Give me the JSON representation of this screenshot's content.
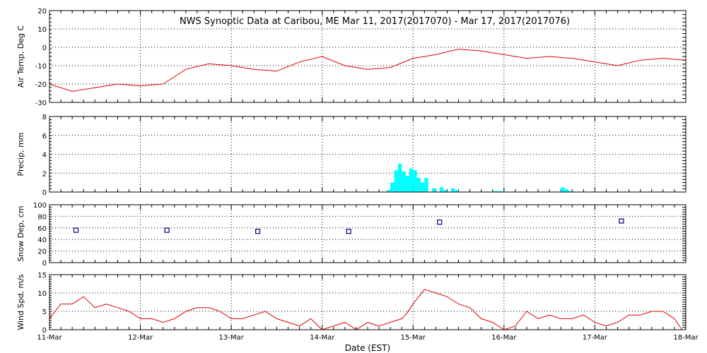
{
  "title": "NWS Synoptic Data at Caribou, ME   Mar 11, 2017(2017070) - Mar 17, 2017(2017076)",
  "xlabel": "Date (EST)",
  "x_ticks": [
    "11-Mar",
    "12-Mar",
    "13-Mar",
    "14-Mar",
    "15-Mar",
    "16-Mar",
    "17-Mar",
    "18-Mar"
  ],
  "colors": {
    "temp": "#dd0000",
    "precip": "#00ffff",
    "snow": "#000080",
    "wind": "#dd0000",
    "grid": "#000000"
  },
  "chart_data": [
    {
      "type": "line",
      "ylabel": "Air Temp, Deg C",
      "ylim": [
        -30,
        20
      ],
      "yticks": [
        20,
        10,
        0,
        -10,
        -20,
        -30
      ],
      "x": [
        "2017-03-11 00:00",
        "2017-03-11 06:00",
        "2017-03-11 12:00",
        "2017-03-11 18:00",
        "2017-03-12 00:00",
        "2017-03-12 06:00",
        "2017-03-12 12:00",
        "2017-03-12 18:00",
        "2017-03-13 00:00",
        "2017-03-13 06:00",
        "2017-03-13 12:00",
        "2017-03-13 18:00",
        "2017-03-14 00:00",
        "2017-03-14 06:00",
        "2017-03-14 12:00",
        "2017-03-14 18:00",
        "2017-03-15 00:00",
        "2017-03-15 06:00",
        "2017-03-15 12:00",
        "2017-03-15 18:00",
        "2017-03-16 00:00",
        "2017-03-16 06:00",
        "2017-03-16 12:00",
        "2017-03-16 18:00",
        "2017-03-17 00:00",
        "2017-03-17 06:00",
        "2017-03-17 12:00",
        "2017-03-17 18:00",
        "2017-03-17 23:59"
      ],
      "values": [
        -20,
        -24,
        -22,
        -20,
        -21,
        -20,
        -12,
        -9,
        -10,
        -12,
        -13,
        -8,
        -5,
        -10,
        -12,
        -11,
        -6,
        -4,
        -1,
        -2,
        -4,
        -6,
        -5,
        -6,
        -8,
        -10,
        -7,
        -6,
        -7
      ],
      "grid": true
    },
    {
      "type": "bar",
      "ylabel": "Precip, mm",
      "ylim": [
        0,
        8
      ],
      "yticks": [
        8,
        6,
        4,
        2,
        0
      ],
      "x": [
        "2017-03-14 17:00",
        "2017-03-14 18:00",
        "2017-03-14 19:00",
        "2017-03-14 20:00",
        "2017-03-14 21:00",
        "2017-03-14 22:00",
        "2017-03-14 23:00",
        "2017-03-15 00:00",
        "2017-03-15 01:00",
        "2017-03-15 02:00",
        "2017-03-15 03:00",
        "2017-03-15 05:00",
        "2017-03-15 07:00",
        "2017-03-15 08:00",
        "2017-03-15 10:00",
        "2017-03-15 11:00",
        "2017-03-15 21:00",
        "2017-03-15 22:00",
        "2017-03-15 23:00",
        "2017-03-16 15:00",
        "2017-03-16 16:00",
        "2017-03-16 17:00"
      ],
      "values": [
        0.2,
        1.0,
        2.3,
        3.0,
        2.2,
        1.7,
        2.5,
        2.3,
        1.5,
        1.0,
        1.5,
        0.4,
        0.5,
        0.2,
        0.4,
        0.2,
        0.1,
        0.1,
        0.1,
        0.5,
        0.3,
        0.1
      ],
      "grid": true
    },
    {
      "type": "scatter",
      "ylabel": "Snow Dep, cm",
      "ylim": [
        0,
        100
      ],
      "yticks": [
        100,
        80,
        60,
        40,
        20,
        0
      ],
      "x": [
        "2017-03-11 07:00",
        "2017-03-12 07:00",
        "2017-03-13 07:00",
        "2017-03-14 07:00",
        "2017-03-15 07:00",
        "2017-03-17 07:00"
      ],
      "values": [
        56,
        56,
        54,
        54,
        70,
        72
      ],
      "grid": true
    },
    {
      "type": "line",
      "ylabel": "Wind Spd, m/s",
      "ylim": [
        0,
        15
      ],
      "yticks": [
        15,
        10,
        5,
        0
      ],
      "x": [
        "2017-03-11 00:00",
        "2017-03-11 03:00",
        "2017-03-11 06:00",
        "2017-03-11 09:00",
        "2017-03-11 12:00",
        "2017-03-11 15:00",
        "2017-03-11 18:00",
        "2017-03-11 21:00",
        "2017-03-12 00:00",
        "2017-03-12 03:00",
        "2017-03-12 06:00",
        "2017-03-12 09:00",
        "2017-03-12 12:00",
        "2017-03-12 15:00",
        "2017-03-12 18:00",
        "2017-03-12 21:00",
        "2017-03-13 00:00",
        "2017-03-13 03:00",
        "2017-03-13 06:00",
        "2017-03-13 09:00",
        "2017-03-13 12:00",
        "2017-03-13 15:00",
        "2017-03-13 18:00",
        "2017-03-13 21:00",
        "2017-03-14 00:00",
        "2017-03-14 03:00",
        "2017-03-14 06:00",
        "2017-03-14 09:00",
        "2017-03-14 12:00",
        "2017-03-14 15:00",
        "2017-03-14 18:00",
        "2017-03-14 21:00",
        "2017-03-14 22:00",
        "2017-03-15 00:00",
        "2017-03-15 03:00",
        "2017-03-15 06:00",
        "2017-03-15 09:00",
        "2017-03-15 12:00",
        "2017-03-15 15:00",
        "2017-03-15 18:00",
        "2017-03-15 21:00",
        "2017-03-16 00:00",
        "2017-03-16 03:00",
        "2017-03-16 06:00",
        "2017-03-16 09:00",
        "2017-03-16 12:00",
        "2017-03-16 15:00",
        "2017-03-16 18:00",
        "2017-03-16 21:00",
        "2017-03-17 00:00",
        "2017-03-17 03:00",
        "2017-03-17 06:00",
        "2017-03-17 09:00",
        "2017-03-17 12:00",
        "2017-03-17 15:00",
        "2017-03-17 18:00",
        "2017-03-17 21:00",
        "2017-03-17 23:00"
      ],
      "values": [
        3,
        7,
        7,
        9,
        6,
        7,
        6,
        5,
        3,
        3,
        2,
        3,
        5,
        6,
        6,
        5,
        3,
        3,
        4,
        5,
        3,
        2,
        1,
        3,
        0,
        1,
        2,
        0,
        2,
        1,
        2,
        3,
        4,
        7,
        11,
        10,
        9,
        7,
        6,
        3,
        2,
        0,
        1,
        5,
        3,
        4,
        3,
        3,
        4,
        2,
        1,
        2,
        4,
        4,
        5,
        5,
        3,
        0
      ],
      "grid": true
    }
  ]
}
